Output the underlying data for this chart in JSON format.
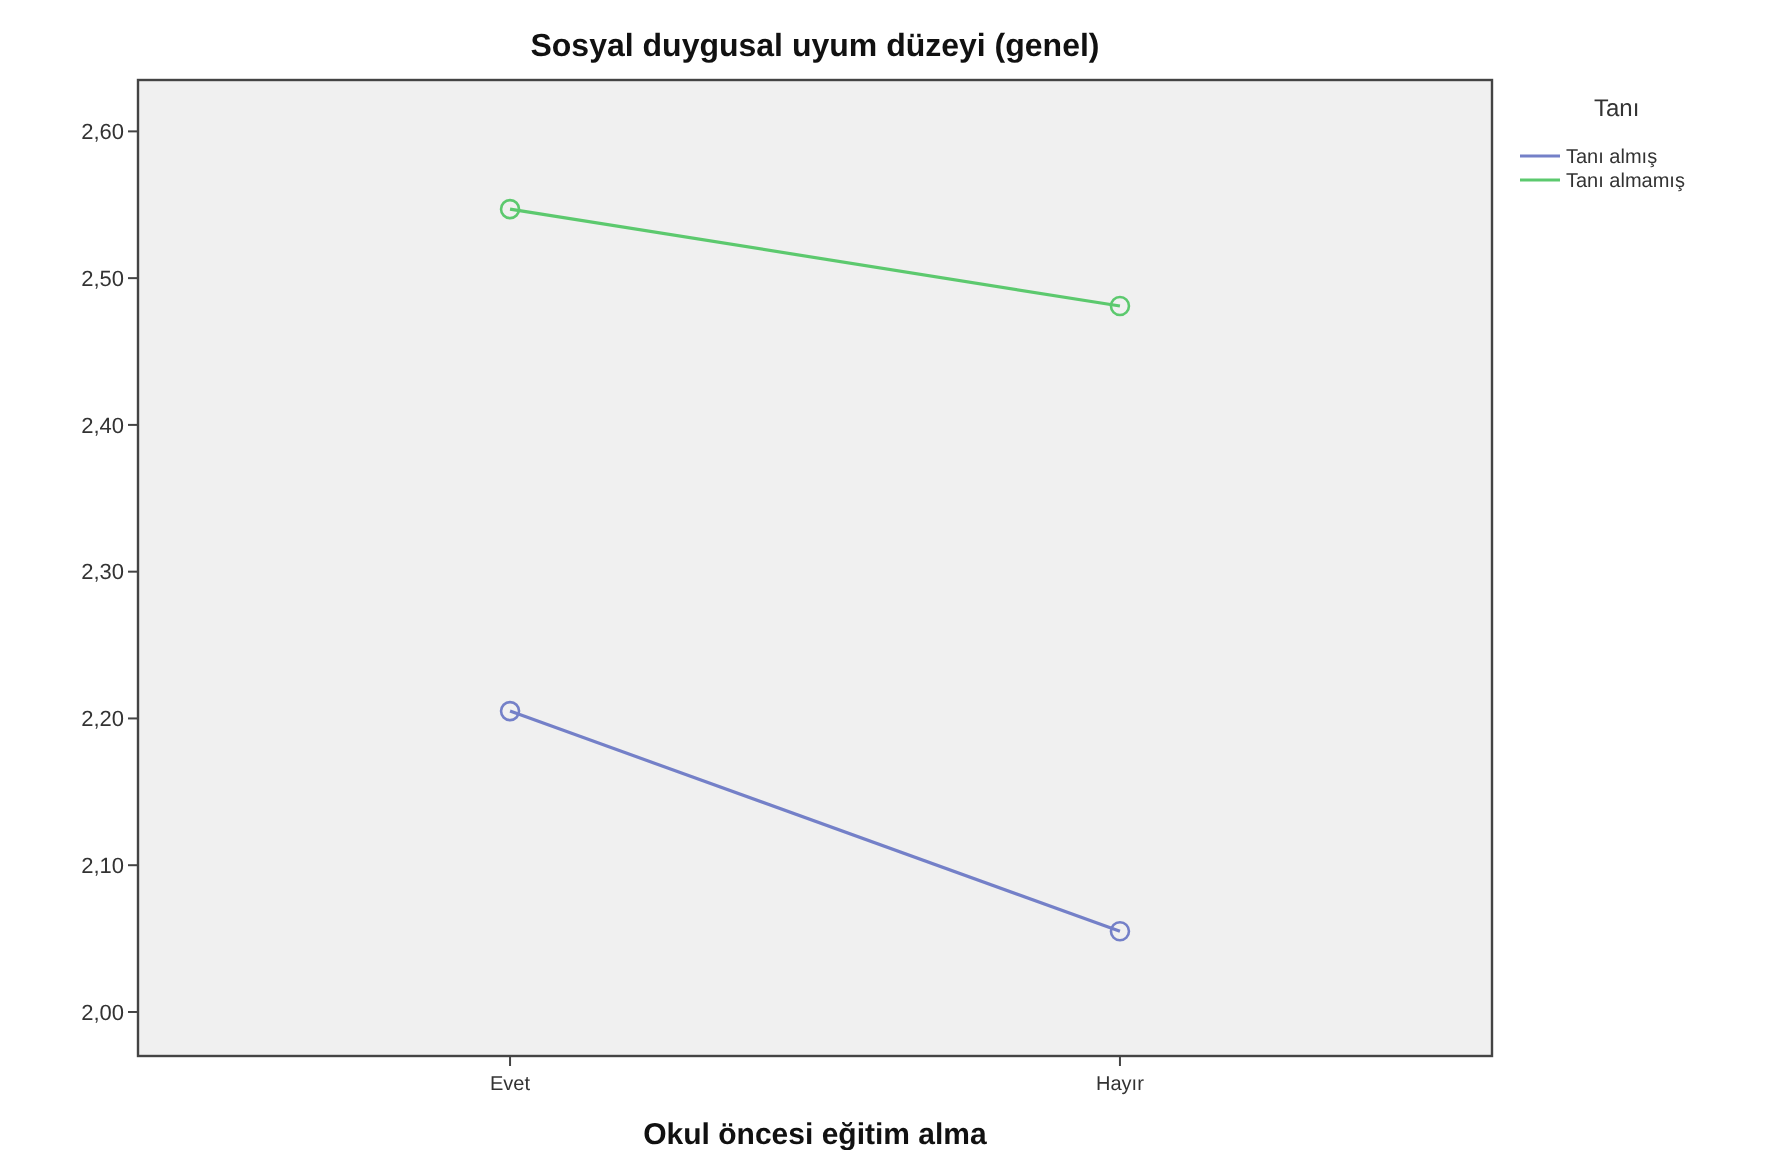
{
  "chart_data": {
    "type": "line",
    "title": "Sosyal duygusal uyum düzeyi (genel)",
    "xlabel": "Okul öncesi eğitim alma",
    "legend_title": "Tanı",
    "categories": [
      "Evet",
      "Hayır"
    ],
    "series": [
      {
        "name": "Tanı almış",
        "color": "#7480c8",
        "values": [
          2.205,
          2.055
        ]
      },
      {
        "name": "Tanı almamış",
        "color": "#5cc96e",
        "values": [
          2.547,
          2.481
        ]
      }
    ],
    "ylim": [
      1.97,
      2.635
    ],
    "yticks": [
      {
        "value": 2,
        "label": "2,00"
      },
      {
        "value": 2.1,
        "label": "2,10"
      },
      {
        "value": 2.2,
        "label": "2,20"
      },
      {
        "value": 2.3,
        "label": "2,30"
      },
      {
        "value": 2.4,
        "label": "2,40"
      },
      {
        "value": 2.5,
        "label": "2,50"
      },
      {
        "value": 2.6,
        "label": "2,60"
      }
    ],
    "grid": false,
    "legend": "top right",
    "marker": "circle",
    "line_style": "solid"
  }
}
